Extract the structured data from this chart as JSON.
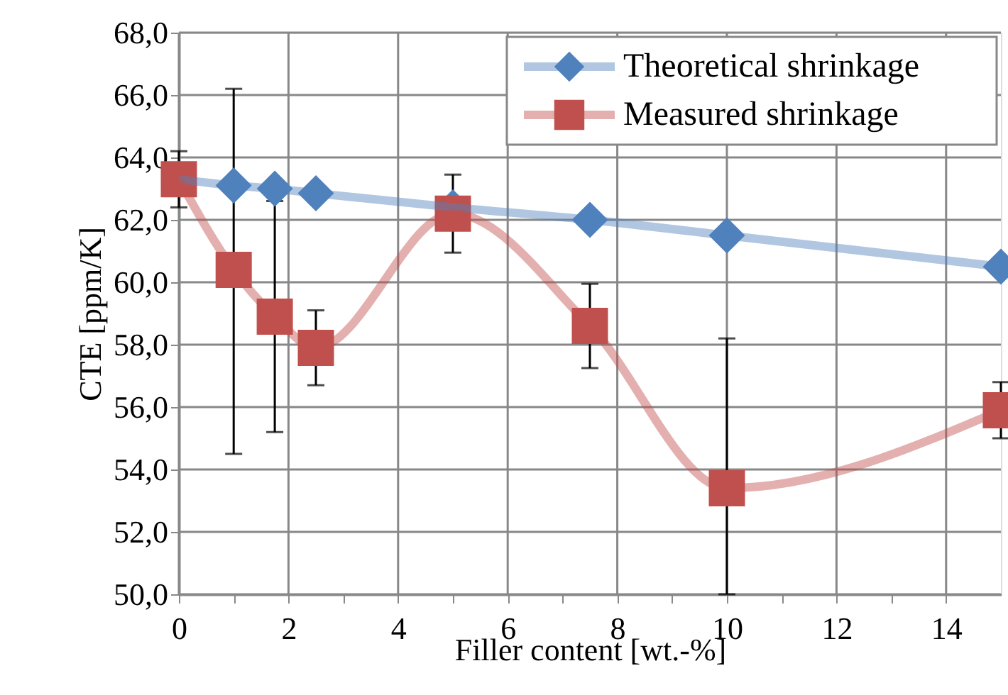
{
  "chart_data": {
    "type": "line",
    "xlabel": "Filler content [wt.-%]",
    "ylabel": "CTE [ppm/K]",
    "x": [
      0,
      1,
      1.75,
      2.5,
      5,
      7.5,
      10,
      15
    ],
    "series": [
      {
        "name": "Theoretical shrinkage",
        "color": "#4f81bd",
        "marker": "diamond",
        "values": [
          63.3,
          63.1,
          63.0,
          62.85,
          62.4,
          62.0,
          61.5,
          60.5
        ]
      },
      {
        "name": "Measured shrinkage",
        "color": "#c0504d",
        "marker": "square",
        "values": [
          63.3,
          60.4,
          58.9,
          57.9,
          62.2,
          58.6,
          53.4,
          55.9
        ],
        "errors": [
          0.9,
          [
            54.5,
            66.2
          ],
          3.7,
          1.2,
          1.25,
          1.35,
          [
            50.0,
            58.2
          ],
          0.9
        ]
      }
    ],
    "xlim": [
      0,
      15
    ],
    "ylim": [
      50,
      68
    ],
    "xticks": [
      0,
      {
        "value": 1,
        "label": null
      },
      2,
      {
        "value": 3,
        "label": null
      },
      4,
      {
        "value": 5,
        "label": null
      },
      6,
      {
        "value": 7,
        "label": null
      },
      8,
      {
        "value": 9,
        "label": null
      },
      10,
      {
        "value": 11,
        "label": null
      },
      12,
      {
        "value": 13,
        "label": null
      },
      14
    ],
    "yticks": [
      {
        "value": 50,
        "label": "50,0"
      },
      {
        "value": 52,
        "label": "52,0"
      },
      {
        "value": 54,
        "label": "54,0"
      },
      {
        "value": 56,
        "label": "56,0"
      },
      {
        "value": 58,
        "label": "58,0"
      },
      {
        "value": 60,
        "label": "60,0"
      },
      {
        "value": 62,
        "label": "62,0"
      },
      {
        "value": 64,
        "label": "64,0"
      },
      {
        "value": 66,
        "label": "66,0"
      },
      {
        "value": 68,
        "label": "68,0"
      }
    ],
    "grid": true,
    "legend": "top right",
    "line_style": "solid"
  }
}
